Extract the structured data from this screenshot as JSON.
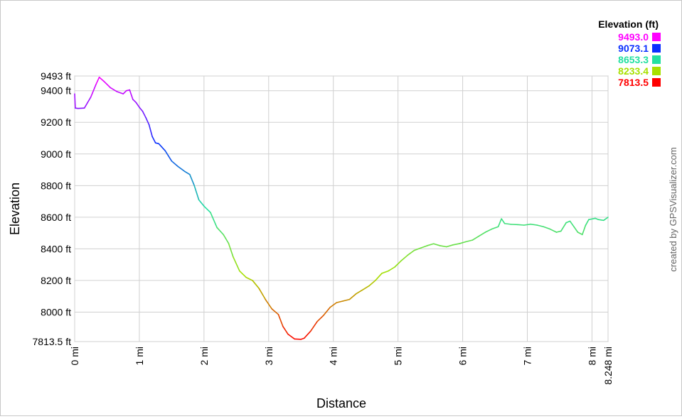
{
  "chart_data": {
    "type": "line",
    "xlabel": "Distance",
    "ylabel": "Elevation",
    "credit": "created by GPSVisualizer.com",
    "xlim": [
      0,
      8.248
    ],
    "ylim": [
      7813.5,
      9493
    ],
    "grid": true,
    "x_ticks": [
      {
        "value": 0,
        "label": "0 mi"
      },
      {
        "value": 1,
        "label": "1 mi"
      },
      {
        "value": 2,
        "label": "2 mi"
      },
      {
        "value": 3,
        "label": "3 mi"
      },
      {
        "value": 4,
        "label": "4 mi"
      },
      {
        "value": 5,
        "label": "5 mi"
      },
      {
        "value": 6,
        "label": "6 mi"
      },
      {
        "value": 7,
        "label": "7 mi"
      },
      {
        "value": 8,
        "label": "8 mi"
      },
      {
        "value": 8.248,
        "label": "8.248 mi"
      }
    ],
    "y_ticks": [
      {
        "value": 9493,
        "label": "9493 ft"
      },
      {
        "value": 9400,
        "label": "9400 ft"
      },
      {
        "value": 9200,
        "label": "9200 ft"
      },
      {
        "value": 9000,
        "label": "9000 ft"
      },
      {
        "value": 8800,
        "label": "8800 ft"
      },
      {
        "value": 8600,
        "label": "8600 ft"
      },
      {
        "value": 8400,
        "label": "8400 ft"
      },
      {
        "value": 8200,
        "label": "8200 ft"
      },
      {
        "value": 8000,
        "label": "8000 ft"
      },
      {
        "value": 7813.5,
        "label": "7813.5 ft"
      }
    ],
    "legend": {
      "title": "Elevation (ft)",
      "placement": "top-right",
      "entries": [
        {
          "label": "9493.0",
          "color": "#ff00ff"
        },
        {
          "label": "9073.1",
          "color": "#0a2fff"
        },
        {
          "label": "8653.3",
          "color": "#22e0a0"
        },
        {
          "label": "8233.4",
          "color": "#a8e000"
        },
        {
          "label": "7813.5",
          "color": "#ff0000"
        }
      ]
    },
    "series": [
      {
        "x": [
          0,
          0.01,
          0.05,
          0.15,
          0.25,
          0.33,
          0.38,
          0.45,
          0.55,
          0.65,
          0.75,
          0.8,
          0.85,
          0.9,
          0.95,
          1.0,
          1.05,
          1.1,
          1.15,
          1.2,
          1.25,
          1.3,
          1.4,
          1.5,
          1.6,
          1.7,
          1.78,
          1.85,
          1.92,
          2.0,
          2.1,
          2.2,
          2.3,
          2.38,
          2.45,
          2.55,
          2.65,
          2.75,
          2.85,
          2.95,
          3.05,
          3.15,
          3.22,
          3.3,
          3.4,
          3.5,
          3.55,
          3.65,
          3.75,
          3.85,
          3.95,
          4.05,
          4.15,
          4.25,
          4.35,
          4.45,
          4.55,
          4.65,
          4.75,
          4.85,
          4.95,
          5.05,
          5.15,
          5.25,
          5.35,
          5.45,
          5.55,
          5.65,
          5.75,
          5.85,
          5.95,
          6.05,
          6.15,
          6.25,
          6.35,
          6.45,
          6.55,
          6.6,
          6.65,
          6.75,
          6.85,
          6.95,
          7.05,
          7.15,
          7.25,
          7.35,
          7.45,
          7.52,
          7.6,
          7.66,
          7.72,
          7.78,
          7.85,
          7.9,
          7.95,
          8.05,
          8.1,
          8.18,
          8.248
        ],
        "y": [
          9380,
          9290,
          9288,
          9290,
          9360,
          9440,
          9485,
          9460,
          9420,
          9395,
          9380,
          9400,
          9405,
          9345,
          9325,
          9295,
          9270,
          9230,
          9185,
          9110,
          9070,
          9065,
          9020,
          8955,
          8920,
          8890,
          8870,
          8800,
          8710,
          8670,
          8630,
          8535,
          8490,
          8435,
          8350,
          8260,
          8220,
          8200,
          8150,
          8080,
          8020,
          7985,
          7910,
          7860,
          7830,
          7828,
          7835,
          7880,
          7940,
          7980,
          8030,
          8060,
          8070,
          8080,
          8115,
          8140,
          8165,
          8200,
          8245,
          8260,
          8285,
          8325,
          8360,
          8390,
          8405,
          8420,
          8432,
          8420,
          8413,
          8425,
          8433,
          8445,
          8455,
          8480,
          8505,
          8525,
          8540,
          8590,
          8560,
          8555,
          8553,
          8550,
          8556,
          8550,
          8540,
          8525,
          8505,
          8512,
          8565,
          8575,
          8540,
          8505,
          8490,
          8548,
          8585,
          8593,
          8585,
          8580,
          8600
        ]
      }
    ]
  }
}
